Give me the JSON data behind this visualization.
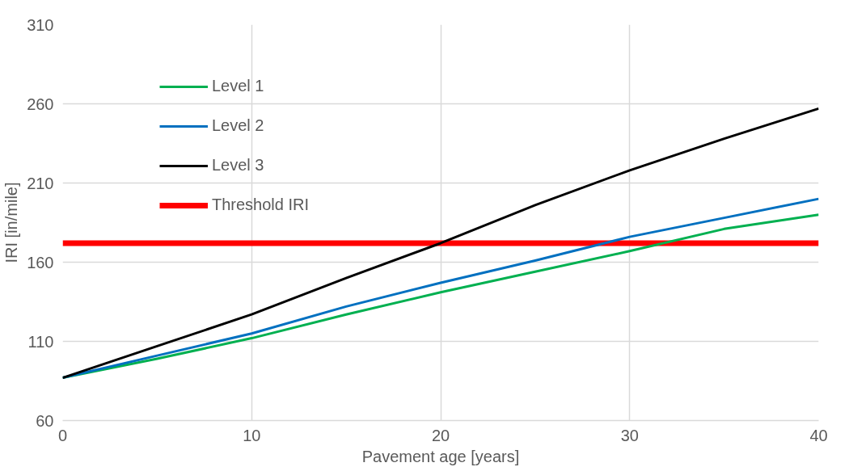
{
  "chart_data": {
    "type": "line",
    "xlabel": "Pavement age [years]",
    "ylabel": "IRI [in/mile]",
    "x": [
      0,
      5,
      10,
      15,
      20,
      25,
      30,
      35,
      40
    ],
    "series": [
      {
        "name": "Level 1",
        "color": "#00b050",
        "values": [
          87,
          99,
          112,
          127,
          141,
          154,
          167,
          181,
          190
        ]
      },
      {
        "name": "Level 2",
        "color": "#0070c0",
        "values": [
          87,
          101,
          115,
          132,
          147,
          161,
          176,
          188,
          200
        ]
      },
      {
        "name": "Level 3",
        "color": "#000000",
        "values": [
          87,
          107,
          127,
          150,
          172,
          196,
          218,
          238,
          257
        ]
      }
    ],
    "ref_lines": [
      {
        "axis": "y",
        "value": 172,
        "label": "Threshold IRI",
        "color": "#ff0000"
      }
    ],
    "xlim": [
      0,
      40
    ],
    "xticks": [
      0,
      10,
      20,
      30,
      40
    ],
    "ylim": [
      60,
      310
    ],
    "yticks": [
      60,
      110,
      160,
      210,
      260,
      310
    ],
    "grid": true,
    "legend": "top left",
    "marker": "none",
    "line_style": "solid"
  }
}
